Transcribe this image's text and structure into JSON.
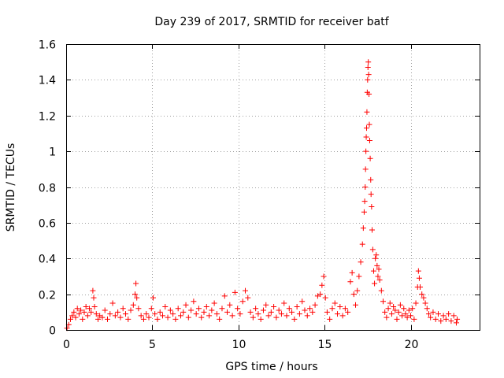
{
  "chart_data": {
    "type": "scatter",
    "title": "Day 239 of 2017, SRMTID for receiver batf",
    "xlabel": "GPS time / hours",
    "ylabel": "SRMTID / TECUs",
    "xlim": [
      0,
      24
    ],
    "ylim": [
      0,
      1.6
    ],
    "xticks": [
      0,
      5,
      10,
      15,
      20
    ],
    "xtick_labels": [
      "0",
      "5",
      "10",
      "15",
      "20"
    ],
    "yticks": [
      0,
      0.2,
      0.4,
      0.6,
      0.8,
      1,
      1.2,
      1.4,
      1.6
    ],
    "ytick_labels": [
      "0",
      "0.2",
      "0.4",
      "0.6",
      "0.8",
      "1",
      "1.2",
      "1.4",
      "1.6"
    ],
    "grid": true,
    "marker": "+",
    "color": "#ff0000",
    "series": [
      {
        "name": "SRMTID",
        "points": [
          [
            0.05,
            0.01
          ],
          [
            0.15,
            0.03
          ],
          [
            0.25,
            0.06
          ],
          [
            0.35,
            0.08
          ],
          [
            0.45,
            0.1
          ],
          [
            0.55,
            0.07
          ],
          [
            0.65,
            0.12
          ],
          [
            0.75,
            0.09
          ],
          [
            0.85,
            0.11
          ],
          [
            0.95,
            0.06
          ],
          [
            1.05,
            0.1
          ],
          [
            1.15,
            0.13
          ],
          [
            1.25,
            0.08
          ],
          [
            1.35,
            0.12
          ],
          [
            1.45,
            0.1
          ],
          [
            1.55,
            0.22
          ],
          [
            1.6,
            0.18
          ],
          [
            1.65,
            0.13
          ],
          [
            1.75,
            0.09
          ],
          [
            1.85,
            0.06
          ],
          [
            1.95,
            0.08
          ],
          [
            2.1,
            0.07
          ],
          [
            2.25,
            0.11
          ],
          [
            2.4,
            0.06
          ],
          [
            2.55,
            0.09
          ],
          [
            2.7,
            0.15
          ],
          [
            2.85,
            0.08
          ],
          [
            3.0,
            0.1
          ],
          [
            3.15,
            0.07
          ],
          [
            3.3,
            0.12
          ],
          [
            3.45,
            0.09
          ],
          [
            3.6,
            0.06
          ],
          [
            3.75,
            0.11
          ],
          [
            3.9,
            0.14
          ],
          [
            4.0,
            0.2
          ],
          [
            4.05,
            0.26
          ],
          [
            4.1,
            0.18
          ],
          [
            4.2,
            0.12
          ],
          [
            4.35,
            0.08
          ],
          [
            4.5,
            0.06
          ],
          [
            4.65,
            0.09
          ],
          [
            4.8,
            0.07
          ],
          [
            4.95,
            0.12
          ],
          [
            5.05,
            0.18
          ],
          [
            5.15,
            0.09
          ],
          [
            5.3,
            0.06
          ],
          [
            5.45,
            0.1
          ],
          [
            5.6,
            0.08
          ],
          [
            5.75,
            0.13
          ],
          [
            5.9,
            0.07
          ],
          [
            6.05,
            0.11
          ],
          [
            6.2,
            0.09
          ],
          [
            6.35,
            0.06
          ],
          [
            6.5,
            0.12
          ],
          [
            6.65,
            0.08
          ],
          [
            6.8,
            0.1
          ],
          [
            6.95,
            0.14
          ],
          [
            7.1,
            0.07
          ],
          [
            7.25,
            0.11
          ],
          [
            7.4,
            0.16
          ],
          [
            7.55,
            0.09
          ],
          [
            7.7,
            0.12
          ],
          [
            7.85,
            0.07
          ],
          [
            8.0,
            0.1
          ],
          [
            8.15,
            0.13
          ],
          [
            8.3,
            0.08
          ],
          [
            8.45,
            0.11
          ],
          [
            8.6,
            0.15
          ],
          [
            8.75,
            0.09
          ],
          [
            8.9,
            0.06
          ],
          [
            9.05,
            0.12
          ],
          [
            9.2,
            0.19
          ],
          [
            9.35,
            0.1
          ],
          [
            9.5,
            0.14
          ],
          [
            9.65,
            0.08
          ],
          [
            9.8,
            0.21
          ],
          [
            9.95,
            0.12
          ],
          [
            10.1,
            0.09
          ],
          [
            10.25,
            0.16
          ],
          [
            10.4,
            0.22
          ],
          [
            10.55,
            0.18
          ],
          [
            10.7,
            0.1
          ],
          [
            10.85,
            0.07
          ],
          [
            11.0,
            0.12
          ],
          [
            11.15,
            0.09
          ],
          [
            11.3,
            0.06
          ],
          [
            11.45,
            0.11
          ],
          [
            11.6,
            0.14
          ],
          [
            11.75,
            0.08
          ],
          [
            11.9,
            0.1
          ],
          [
            12.05,
            0.13
          ],
          [
            12.2,
            0.07
          ],
          [
            12.35,
            0.11
          ],
          [
            12.5,
            0.09
          ],
          [
            12.65,
            0.15
          ],
          [
            12.8,
            0.08
          ],
          [
            12.95,
            0.12
          ],
          [
            13.1,
            0.1
          ],
          [
            13.25,
            0.06
          ],
          [
            13.4,
            0.13
          ],
          [
            13.55,
            0.09
          ],
          [
            13.7,
            0.16
          ],
          [
            13.85,
            0.11
          ],
          [
            14.0,
            0.08
          ],
          [
            14.15,
            0.12
          ],
          [
            14.3,
            0.1
          ],
          [
            14.45,
            0.14
          ],
          [
            14.6,
            0.19
          ],
          [
            14.75,
            0.2
          ],
          [
            14.85,
            0.25
          ],
          [
            14.95,
            0.3
          ],
          [
            15.05,
            0.18
          ],
          [
            15.15,
            0.1
          ],
          [
            15.3,
            0.06
          ],
          [
            15.45,
            0.12
          ],
          [
            15.6,
            0.15
          ],
          [
            15.75,
            0.09
          ],
          [
            15.9,
            0.13
          ],
          [
            16.05,
            0.08
          ],
          [
            16.2,
            0.12
          ],
          [
            16.35,
            0.1
          ],
          [
            16.5,
            0.27
          ],
          [
            16.6,
            0.32
          ],
          [
            16.7,
            0.2
          ],
          [
            16.8,
            0.14
          ],
          [
            16.9,
            0.22
          ],
          [
            17.0,
            0.3
          ],
          [
            17.1,
            0.38
          ],
          [
            17.2,
            0.48
          ],
          [
            17.25,
            0.57
          ],
          [
            17.3,
            0.66
          ],
          [
            17.33,
            0.72
          ],
          [
            17.36,
            0.8
          ],
          [
            17.38,
            0.9
          ],
          [
            17.4,
            1.0
          ],
          [
            17.42,
            1.08
          ],
          [
            17.44,
            1.13
          ],
          [
            17.46,
            1.22
          ],
          [
            17.48,
            1.33
          ],
          [
            17.5,
            1.4
          ],
          [
            17.52,
            1.47
          ],
          [
            17.54,
            1.5
          ],
          [
            17.56,
            1.43
          ],
          [
            17.58,
            1.32
          ],
          [
            17.6,
            1.15
          ],
          [
            17.62,
            1.06
          ],
          [
            17.65,
            0.96
          ],
          [
            17.68,
            0.84
          ],
          [
            17.7,
            0.76
          ],
          [
            17.73,
            0.69
          ],
          [
            17.76,
            0.56
          ],
          [
            17.8,
            0.45
          ],
          [
            17.85,
            0.33
          ],
          [
            17.9,
            0.26
          ],
          [
            17.95,
            0.4
          ],
          [
            18.0,
            0.42
          ],
          [
            18.05,
            0.36
          ],
          [
            18.1,
            0.3
          ],
          [
            18.15,
            0.34
          ],
          [
            18.2,
            0.28
          ],
          [
            18.3,
            0.22
          ],
          [
            18.4,
            0.16
          ],
          [
            18.5,
            0.1
          ],
          [
            18.6,
            0.07
          ],
          [
            18.7,
            0.12
          ],
          [
            18.8,
            0.15
          ],
          [
            18.9,
            0.09
          ],
          [
            19.0,
            0.13
          ],
          [
            19.1,
            0.11
          ],
          [
            19.2,
            0.06
          ],
          [
            19.3,
            0.1
          ],
          [
            19.4,
            0.14
          ],
          [
            19.5,
            0.08
          ],
          [
            19.6,
            0.12
          ],
          [
            19.7,
            0.09
          ],
          [
            19.8,
            0.07
          ],
          [
            19.9,
            0.11
          ],
          [
            20.0,
            0.08
          ],
          [
            20.1,
            0.12
          ],
          [
            20.2,
            0.06
          ],
          [
            20.3,
            0.15
          ],
          [
            20.4,
            0.24
          ],
          [
            20.45,
            0.33
          ],
          [
            20.5,
            0.29
          ],
          [
            20.55,
            0.24
          ],
          [
            20.65,
            0.2
          ],
          [
            20.75,
            0.18
          ],
          [
            20.85,
            0.15
          ],
          [
            20.95,
            0.12
          ],
          [
            21.05,
            0.09
          ],
          [
            21.15,
            0.07
          ],
          [
            21.3,
            0.1
          ],
          [
            21.45,
            0.06
          ],
          [
            21.6,
            0.09
          ],
          [
            21.75,
            0.05
          ],
          [
            21.9,
            0.08
          ],
          [
            22.05,
            0.06
          ],
          [
            22.2,
            0.09
          ],
          [
            22.35,
            0.05
          ],
          [
            22.5,
            0.08
          ],
          [
            22.65,
            0.04
          ],
          [
            22.7,
            0.06
          ]
        ]
      }
    ]
  }
}
